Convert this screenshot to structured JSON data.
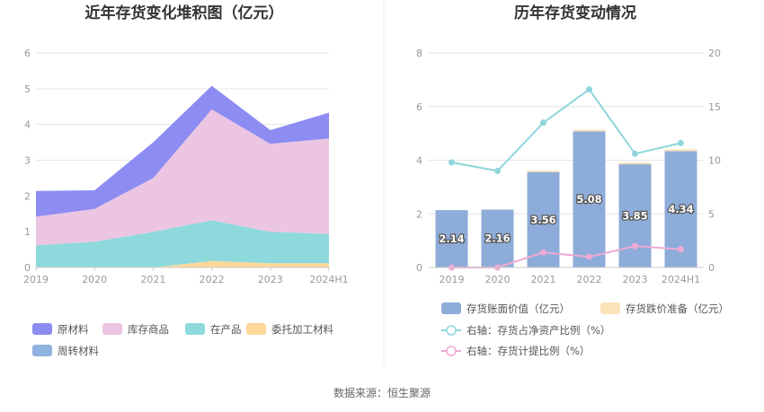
{
  "source": "数据来源：恒生聚源",
  "chart_data": [
    {
      "type": "area",
      "stacked": true,
      "title": "近年存货变化堆积图（亿元）",
      "categories": [
        "2019",
        "2020",
        "2021",
        "2022",
        "2023",
        "2024H1"
      ],
      "ylim": [
        0,
        6
      ],
      "yticks": [
        "0",
        "1",
        "2",
        "3",
        "4",
        "5",
        "6"
      ],
      "grid": true,
      "legend_position": "bottom",
      "series": [
        {
          "name": "委托加工材料",
          "color": "#fcd89a",
          "values": [
            0.0,
            0.0,
            0.0,
            0.18,
            0.12,
            0.12
          ]
        },
        {
          "name": "在产品",
          "color": "#8ed9dc",
          "values": [
            0.62,
            0.72,
            1.0,
            1.14,
            0.88,
            0.82
          ]
        },
        {
          "name": "库存商品",
          "color": "#ecc5e3",
          "values": [
            0.8,
            0.92,
            1.5,
            3.1,
            2.46,
            2.67
          ]
        },
        {
          "name": "原材料",
          "color": "#8c8cf2",
          "values": [
            0.72,
            0.52,
            1.0,
            0.66,
            0.38,
            0.72
          ]
        },
        {
          "name": "周转材料",
          "color": "#8fb2de",
          "values": [
            0.0,
            0.0,
            0.0,
            0.0,
            0.0,
            0.0
          ]
        }
      ],
      "legend_order": [
        "原材料",
        "库存商品",
        "在产品",
        "委托加工材料",
        "周转材料"
      ]
    },
    {
      "type": "bar",
      "title": "历年存货变动情况",
      "categories": [
        "2019",
        "2020",
        "2021",
        "2022",
        "2023",
        "2024H1"
      ],
      "ylim": [
        0,
        8
      ],
      "yticks": [
        "0",
        "2",
        "4",
        "6",
        "8"
      ],
      "y2lim": [
        0,
        20
      ],
      "y2ticks": [
        "0",
        "5",
        "10",
        "15",
        "20"
      ],
      "grid": true,
      "legend_position": "bottom",
      "bars": [
        {
          "name": "存货账面价值（亿元）",
          "color": "#8eacd9",
          "values": [
            2.14,
            2.16,
            3.56,
            5.08,
            3.85,
            4.34
          ],
          "labels": [
            "2.14",
            "2.16",
            "3.56",
            "5.08",
            "3.85",
            "4.34"
          ]
        },
        {
          "name": "存货跌价准备（亿元）",
          "color": "#fbe3b8",
          "values": [
            0.0,
            0.0,
            0.05,
            0.06,
            0.06,
            0.07
          ]
        }
      ],
      "lines": [
        {
          "name": "右轴：存货占净资产比例（%）",
          "color": "#8ed6da",
          "axis": "right",
          "values": [
            9.8,
            9.0,
            13.5,
            16.6,
            10.6,
            11.6
          ]
        },
        {
          "name": "右轴：存货计提比例（%）",
          "color": "#eea9d4",
          "axis": "right",
          "values": [
            0.0,
            0.0,
            1.4,
            1.0,
            2.0,
            1.7
          ]
        }
      ]
    }
  ]
}
